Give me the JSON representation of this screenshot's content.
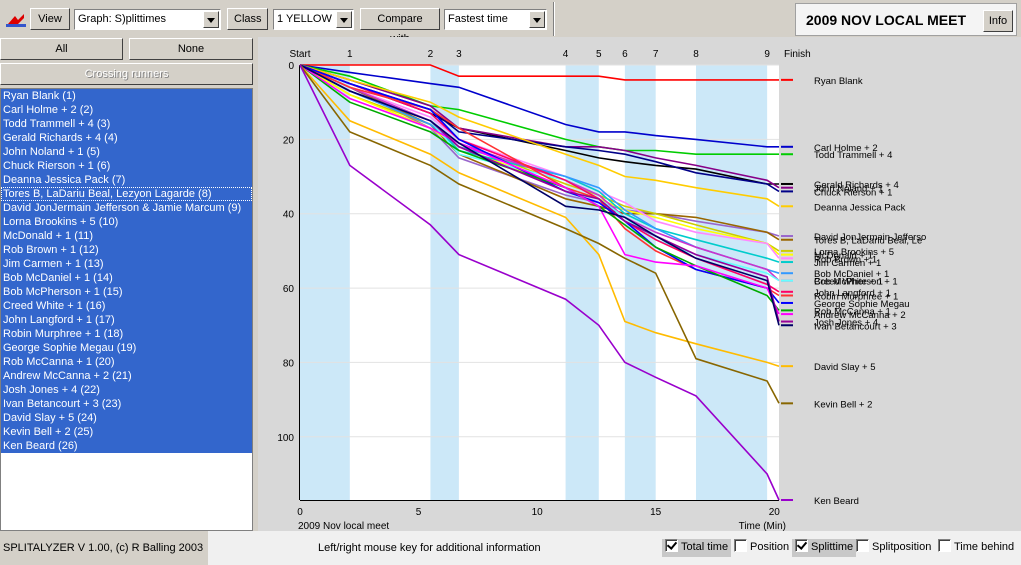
{
  "toolbar": {
    "view_label": "View",
    "graph_select": "Graph: S)plittimes",
    "class_label": "Class",
    "class_select": "1 YELLOW",
    "compare_label": "Compare with",
    "compare_select": "Fastest time",
    "meet_title": "2009 NOV LOCAL MEET",
    "info_label": "Info"
  },
  "left_panel": {
    "all_label": "All",
    "none_label": "None",
    "crossing_label": "Crossing runners",
    "runners": [
      "Ryan Blank  (1)",
      "Carl Holme + 2  (2)",
      "Todd Trammell + 4  (3)",
      "Gerald Richards + 4  (4)",
      "John Noland + 1  (5)",
      "Chuck Rierson + 1  (6)",
      "Deanna Jessica Pack  (7)",
      "Tores B, LaDariu Beal, Lezyon Lagarde  (8)",
      "David JonJermain Jefferson & Jamie Marcum  (9)",
      "Lorna Brookins + 5  (10)",
      "McDonald + 1  (11)",
      "Rob Brown + 1  (12)",
      "Jim Carmen + 1  (13)",
      "Bob McDaniel + 1  (14)",
      "Bob McPherson + 1  (15)",
      "Creed White + 1  (16)",
      "John Langford + 1  (17)",
      "Robin Murphree + 1  (18)",
      "George Sophie Megau  (19)",
      "Rob McCanna + 1  (20)",
      "Andrew McCanna + 2  (21)",
      "Josh Jones + 4  (22)",
      "Ivan Betancourt + 3  (23)",
      "David Slay + 5  (24)",
      "Kevin Bell + 2  (25)",
      "Ken Beard  (26)"
    ]
  },
  "status": {
    "app_version": "SPLITALYZER V 1.00, (c) R Balling 2003",
    "hint": "Left/right mouse key for additional information",
    "checkboxes": [
      {
        "label": "Total time",
        "checked": true
      },
      {
        "label": "Position",
        "checked": false
      },
      {
        "label": "Splittime",
        "checked": true
      },
      {
        "label": "Splitposition",
        "checked": false
      },
      {
        "label": "Time behind",
        "checked": false
      }
    ]
  },
  "chart_data": {
    "type": "line",
    "caption_left": "2009 Nov local meet",
    "caption_right": "Time (Min)",
    "x_ticks": [
      0,
      5,
      10,
      15,
      20
    ],
    "y_ticks": [
      0,
      20,
      40,
      60,
      80,
      100
    ],
    "xlim": [
      0,
      20.2
    ],
    "ylim": [
      0,
      117
    ],
    "controls": [
      {
        "label": "Start",
        "x": 0
      },
      {
        "label": "1",
        "x": 2.1
      },
      {
        "label": "2",
        "x": 5.5
      },
      {
        "label": "3",
        "x": 6.7
      },
      {
        "label": "4",
        "x": 11.2
      },
      {
        "label": "5",
        "x": 12.6
      },
      {
        "label": "6",
        "x": 13.7
      },
      {
        "label": "7",
        "x": 15.0
      },
      {
        "label": "8",
        "x": 16.7
      },
      {
        "label": "9",
        "x": 19.7
      },
      {
        "label": "Finish",
        "x": 20.2
      }
    ],
    "shaded_legs": [
      [
        0,
        2.1
      ],
      [
        5.5,
        6.7
      ],
      [
        11.2,
        12.6
      ],
      [
        13.7,
        15.0
      ],
      [
        16.7,
        19.7
      ]
    ],
    "series": [
      {
        "name": "Ryan Blank",
        "color": "#ff0000",
        "values": [
          0,
          0,
          0,
          3,
          3,
          3,
          4,
          4,
          4,
          4,
          4
        ]
      },
      {
        "name": "Carl Holme + 2",
        "color": "#0000cc",
        "values": [
          0,
          2,
          5,
          6,
          16,
          18,
          18,
          19,
          20,
          22,
          22
        ]
      },
      {
        "name": "Todd Trammell + 4",
        "color": "#00cc00",
        "values": [
          0,
          3,
          11,
          12,
          20,
          22,
          23,
          23,
          24,
          24,
          24
        ]
      },
      {
        "name": "Gerald Richards + 4",
        "color": "#000000",
        "values": [
          0,
          5,
          13,
          17,
          23,
          25,
          26,
          27,
          28,
          32,
          32
        ]
      },
      {
        "name": "John Noland + 1",
        "color": "#880088",
        "values": [
          0,
          4,
          11,
          17,
          22,
          22,
          23,
          25,
          27,
          31,
          33
        ]
      },
      {
        "name": "Chuck Rierson + 1",
        "color": "#000088",
        "values": [
          0,
          5,
          12,
          18,
          22,
          23,
          24,
          26,
          29,
          32,
          34
        ]
      },
      {
        "name": "Deanna Jessica Pack",
        "color": "#ffcc00",
        "values": [
          0,
          4,
          10,
          14,
          24,
          27,
          30,
          31,
          33,
          36,
          38
        ]
      },
      {
        "name": "David JonJermain Jefferso",
        "color": "#9966cc",
        "values": [
          0,
          6,
          17,
          25,
          35,
          37,
          39,
          40,
          42,
          45,
          46
        ]
      },
      {
        "name": "Tores B, LaDariu Beal, Le",
        "color": "#996600",
        "values": [
          0,
          6,
          16,
          24,
          36,
          38,
          40,
          40,
          41,
          45,
          47
        ]
      },
      {
        "name": "Lorna Brookins + 5",
        "color": "#cccc00",
        "values": [
          0,
          8,
          16,
          21,
          32,
          35,
          38,
          40,
          43,
          48,
          50
        ]
      },
      {
        "name": "McDonald + 1",
        "color": "#ffff00",
        "values": [
          0,
          8,
          17,
          22,
          33,
          36,
          39,
          41,
          44,
          48,
          51
        ]
      },
      {
        "name": "Rob Brown + 1",
        "color": "#ff88ff",
        "values": [
          0,
          6,
          14,
          20,
          30,
          34,
          37,
          42,
          45,
          48,
          52
        ]
      },
      {
        "name": "Jim Carmen + 1",
        "color": "#00cccc",
        "values": [
          0,
          7,
          15,
          23,
          30,
          34,
          40,
          44,
          47,
          52,
          53
        ]
      },
      {
        "name": "Bob McDaniel + 1",
        "color": "#3399ff",
        "values": [
          0,
          7,
          16,
          22,
          30,
          33,
          39,
          44,
          49,
          55,
          56
        ]
      },
      {
        "name": "Bob McPherson + 1",
        "color": "#cc33cc",
        "values": [
          0,
          6,
          15,
          21,
          31,
          35,
          41,
          45,
          49,
          55,
          58
        ]
      },
      {
        "name": "Creed White + 1",
        "color": "#66ffff",
        "values": [
          0,
          7,
          15,
          24,
          31,
          36,
          41,
          47,
          51,
          56,
          58
        ]
      },
      {
        "name": "John Langford + 1",
        "color": "#ff0066",
        "values": [
          0,
          5,
          13,
          20,
          31,
          36,
          42,
          47,
          52,
          59,
          61
        ]
      },
      {
        "name": "Robin Murphree + 1",
        "color": "#ff3333",
        "values": [
          0,
          6,
          12,
          17,
          33,
          36,
          44,
          50,
          55,
          60,
          62
        ]
      },
      {
        "name": "George Sophie Megau",
        "color": "#0000ff",
        "values": [
          0,
          5,
          12,
          20,
          34,
          37,
          42,
          49,
          55,
          60,
          64
        ]
      },
      {
        "name": "Rob McCanna + 1",
        "color": "#00aa00",
        "values": [
          0,
          10,
          18,
          23,
          33,
          38,
          43,
          49,
          54,
          62,
          66
        ]
      },
      {
        "name": "Andrew McCanna + 2",
        "color": "#ff00ff",
        "values": [
          0,
          9,
          17,
          21,
          33,
          38,
          51,
          53,
          54,
          60,
          67
        ]
      },
      {
        "name": "Josh Jones + 4",
        "color": "#990099",
        "values": [
          0,
          7,
          15,
          22,
          34,
          36,
          42,
          46,
          51,
          57,
          69
        ]
      },
      {
        "name": "Ivan Betancourt + 3",
        "color": "#000066",
        "values": [
          0,
          7,
          15,
          21,
          38,
          39,
          41,
          46,
          52,
          58,
          70
        ]
      },
      {
        "name": "David Slay + 5",
        "color": "#ffbb00",
        "values": [
          0,
          15,
          24,
          29,
          41,
          51,
          69,
          72,
          75,
          80,
          81
        ]
      },
      {
        "name": "Kevin Bell + 2",
        "color": "#886600",
        "values": [
          0,
          18,
          27,
          32,
          44,
          48,
          52,
          56,
          79,
          85,
          91
        ]
      },
      {
        "name": "Ken Beard",
        "color": "#9900cc",
        "values": [
          0,
          27,
          43,
          51,
          63,
          70,
          80,
          84,
          89,
          110,
          117
        ]
      }
    ]
  }
}
